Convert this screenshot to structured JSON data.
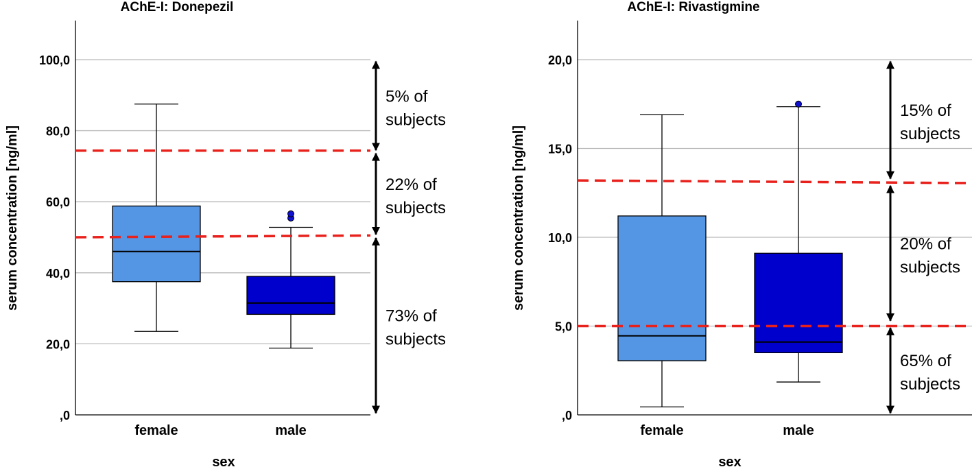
{
  "chart_data": [
    {
      "type": "box",
      "title": "AChE-I: Donepezil",
      "xlabel": "sex",
      "ylabel": "serum concentration [ng/ml]",
      "ylim": [
        0,
        111
      ],
      "yticks": [
        0,
        20,
        40,
        60,
        80,
        100
      ],
      "ytick_labels": [
        ",0",
        "20,0",
        "40,0",
        "60,0",
        "80,0",
        "100,0"
      ],
      "gridlines": [
        20,
        40,
        60,
        80,
        100
      ],
      "categories": [
        "female",
        "male"
      ],
      "boxes": [
        {
          "name": "female",
          "min": 23.5,
          "q1": 37.5,
          "median": 46.0,
          "q3": 58.8,
          "max": 87.5,
          "outliers": [],
          "color": "#5596e4"
        },
        {
          "name": "male",
          "min": 18.8,
          "q1": 28.3,
          "median": 31.5,
          "q3": 39.0,
          "max": 52.8,
          "outliers": [
            55.4,
            56.6
          ],
          "color": "#0000cd"
        }
      ],
      "thresholds": [
        {
          "y_left": 74.4,
          "y_right": 74.4,
          "color": "#e8211c"
        },
        {
          "y_left": 50.0,
          "y_right": 50.5,
          "color": "#e8211c"
        }
      ],
      "ranges": [
        {
          "from": 74.5,
          "to": 99.5,
          "lines": [
            "5%",
            "of",
            "subjects"
          ],
          "label_a": "5% of",
          "label_b": "subjects"
        },
        {
          "from": 50.8,
          "to": 73.6,
          "label_a": "22% of",
          "label_b": "subjects"
        },
        {
          "from": 0.5,
          "to": 49.8,
          "label_a": "73% of",
          "label_b": "subjects"
        }
      ]
    },
    {
      "type": "box",
      "title": "AChE-I: Rivastigmine",
      "xlabel": "sex",
      "ylabel": "serum concentration [ng/ml]",
      "ylim": [
        0,
        22.2
      ],
      "yticks": [
        0,
        5,
        10,
        15,
        20
      ],
      "ytick_labels": [
        ",0",
        "5,0",
        "10,0",
        "15,0",
        "20,0"
      ],
      "gridlines": [
        5,
        10,
        15,
        20
      ],
      "categories": [
        "female",
        "male"
      ],
      "boxes": [
        {
          "name": "female",
          "min": 0.45,
          "q1": 3.05,
          "median": 4.45,
          "q3": 11.2,
          "max": 16.9,
          "outliers": [],
          "color": "#5596e4"
        },
        {
          "name": "male",
          "min": 1.85,
          "q1": 3.5,
          "median": 4.1,
          "q3": 9.1,
          "max": 17.35,
          "outliers": [
            17.5
          ],
          "color": "#0000cd"
        }
      ],
      "thresholds": [
        {
          "y_left": 13.2,
          "y_right": 13.05,
          "color": "#e8211c"
        },
        {
          "y_left": 5.0,
          "y_right": 5.0,
          "color": "#e8211c"
        }
      ],
      "ranges": [
        {
          "from": 13.3,
          "to": 19.9,
          "label_a": "15% of",
          "label_b": "subjects"
        },
        {
          "from": 5.3,
          "to": 12.9,
          "label_a": "20% of",
          "label_b": "subjects"
        },
        {
          "from": 0.1,
          "to": 4.9,
          "label_a": "65% of",
          "label_b": "subjects"
        }
      ]
    }
  ]
}
